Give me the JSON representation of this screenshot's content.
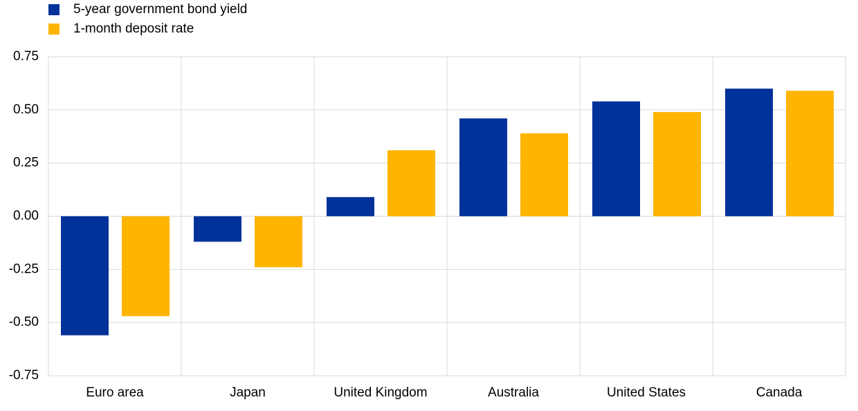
{
  "chart_data": {
    "type": "bar",
    "categories": [
      "Euro area",
      "Japan",
      "United Kingdom",
      "Australia",
      "United States",
      "Canada"
    ],
    "series": [
      {
        "name": "5-year government bond yield",
        "color": "#003299",
        "values": [
          -0.56,
          -0.12,
          0.09,
          0.46,
          0.54,
          0.6
        ]
      },
      {
        "name": "1-month deposit rate",
        "color": "#ffb400",
        "values": [
          -0.47,
          -0.24,
          0.31,
          0.39,
          0.49,
          0.59
        ]
      }
    ],
    "ylim": [
      -0.75,
      0.75
    ],
    "yticks": [
      -0.75,
      {
        "value": -0.5,
        "label": "-0.50"
      },
      -0.25,
      {
        "value": 0,
        "label": "0.00"
      },
      0.25,
      {
        "value": 0.5,
        "label": "0.50"
      },
      0.75
    ],
    "grid": true
  }
}
